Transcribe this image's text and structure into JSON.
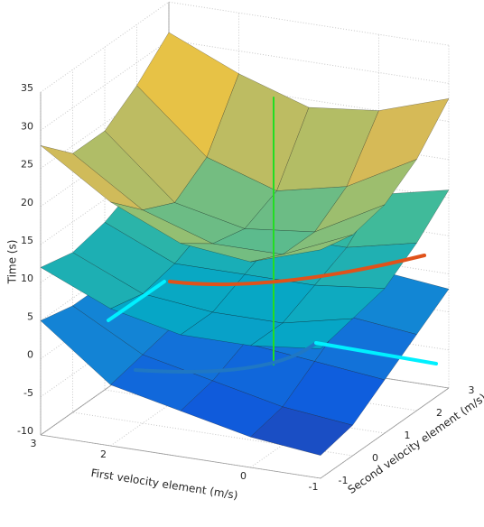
{
  "chart_data": {
    "type": "surface3d",
    "xlabel": "First velocity element (m/s)",
    "ylabel": "Second velocity element (m/s)",
    "zlabel": "Time (s)",
    "xlim": [
      -1,
      3
    ],
    "ylim": [
      -1,
      3
    ],
    "zlim": [
      -10,
      35
    ],
    "xticks": [
      3,
      2,
      0,
      -1
    ],
    "yticks": [
      -1,
      0,
      1,
      2,
      3
    ],
    "zticks": [
      -10,
      -5,
      0,
      5,
      10,
      15,
      20,
      25,
      30,
      35
    ],
    "grid": true,
    "colormap": "parula",
    "x": [
      -1,
      0,
      1,
      2,
      3
    ],
    "y": [
      -1,
      0,
      1,
      2,
      3
    ],
    "surfaces": [
      {
        "z": [
          [
            -7,
            -6,
            -4,
            -2,
            5
          ],
          [
            -6,
            -5,
            -3,
            -1,
            4
          ],
          [
            -3,
            -2,
            -1,
            0,
            4
          ],
          [
            0,
            1,
            1,
            2,
            5
          ],
          [
            3,
            4,
            4,
            5,
            7
          ]
        ]
      },
      {
        "z": [
          [
            7,
            6,
            6,
            8,
            12
          ],
          [
            8,
            6,
            6,
            7,
            11
          ],
          [
            9,
            8,
            8,
            8,
            12
          ],
          [
            12,
            10,
            10,
            10,
            14
          ],
          [
            16,
            14,
            13,
            14,
            17
          ]
        ]
      },
      {
        "z": [
          [
            20,
            17,
            18,
            22,
            28
          ],
          [
            19,
            15,
            15,
            18,
            24
          ],
          [
            20,
            15,
            14,
            16,
            24
          ],
          [
            23,
            18,
            16,
            19,
            27
          ],
          [
            28,
            25,
            24,
            27,
            31
          ]
        ]
      }
    ]
  }
}
